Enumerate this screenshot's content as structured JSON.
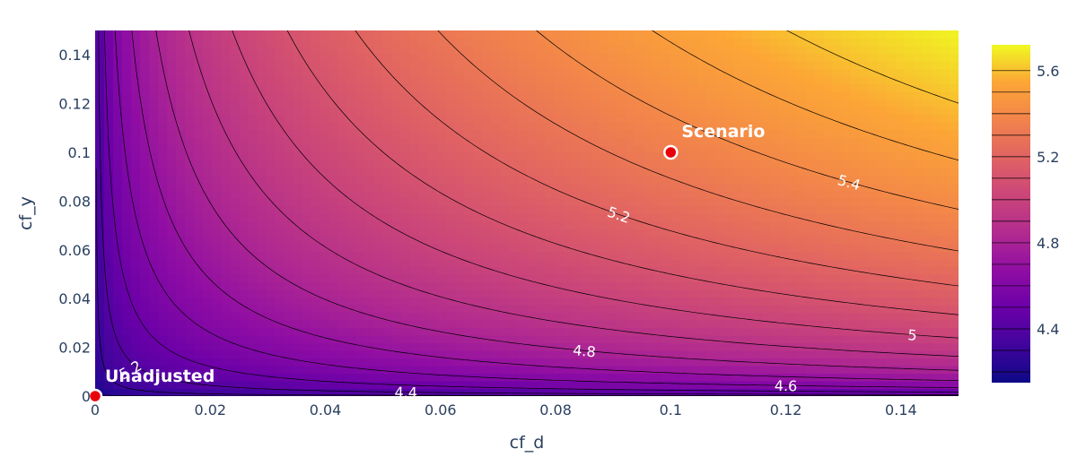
{
  "chart_data": {
    "type": "contour",
    "xlabel": "cf_d",
    "ylabel": "cf_y",
    "xlim": [
      0,
      0.15
    ],
    "ylim": [
      0,
      0.15
    ],
    "x_ticks": [
      "0",
      "0.02",
      "0.04",
      "0.06",
      "0.08",
      "0.1",
      "0.12",
      "0.14"
    ],
    "y_ticks": [
      "0",
      "0.02",
      "0.04",
      "0.06",
      "0.08",
      "0.1",
      "0.12",
      "0.14"
    ],
    "x_tick_values": [
      0,
      0.02,
      0.04,
      0.06,
      0.08,
      0.1,
      0.12,
      0.14
    ],
    "y_tick_values": [
      0,
      0.02,
      0.04,
      0.06,
      0.08,
      0.1,
      0.12,
      0.14
    ],
    "colorscale": "plasma",
    "zlim": [
      4.15,
      5.72
    ],
    "contour_levels": [
      4.2,
      4.3,
      4.4,
      4.5,
      4.6,
      4.7,
      4.8,
      4.9,
      5.0,
      5.1,
      5.2,
      5.3,
      5.4,
      5.5,
      5.6
    ],
    "contour_labels": [
      {
        "text": "4.4",
        "level": 4.4,
        "x": 0.054
      },
      {
        "text": "4.6",
        "level": 4.6,
        "x": 0.12
      },
      {
        "text": "4.8",
        "level": 4.8,
        "x": 0.085
      },
      {
        "text": "5",
        "level": 5.0,
        "x": 0.142
      },
      {
        "text": "5.2",
        "level": 5.2,
        "x": 0.091
      },
      {
        "text": "5.4",
        "level": 5.4,
        "x": 0.131
      }
    ],
    "colorbar_ticks": [
      "4.4",
      "4.8",
      "5.2",
      "5.6"
    ],
    "colorbar_tick_values": [
      4.4,
      4.8,
      5.2,
      5.6
    ],
    "points": [
      {
        "name": "Scenario",
        "x": 0.1,
        "y": 0.1,
        "color": "#e8000b"
      },
      {
        "name": "Unadjusted",
        "x": 0,
        "y": 0,
        "color": "#e8000b"
      }
    ],
    "annotations": [
      "Scenario",
      "Unadjusted"
    ],
    "stray_label": "5.2"
  }
}
